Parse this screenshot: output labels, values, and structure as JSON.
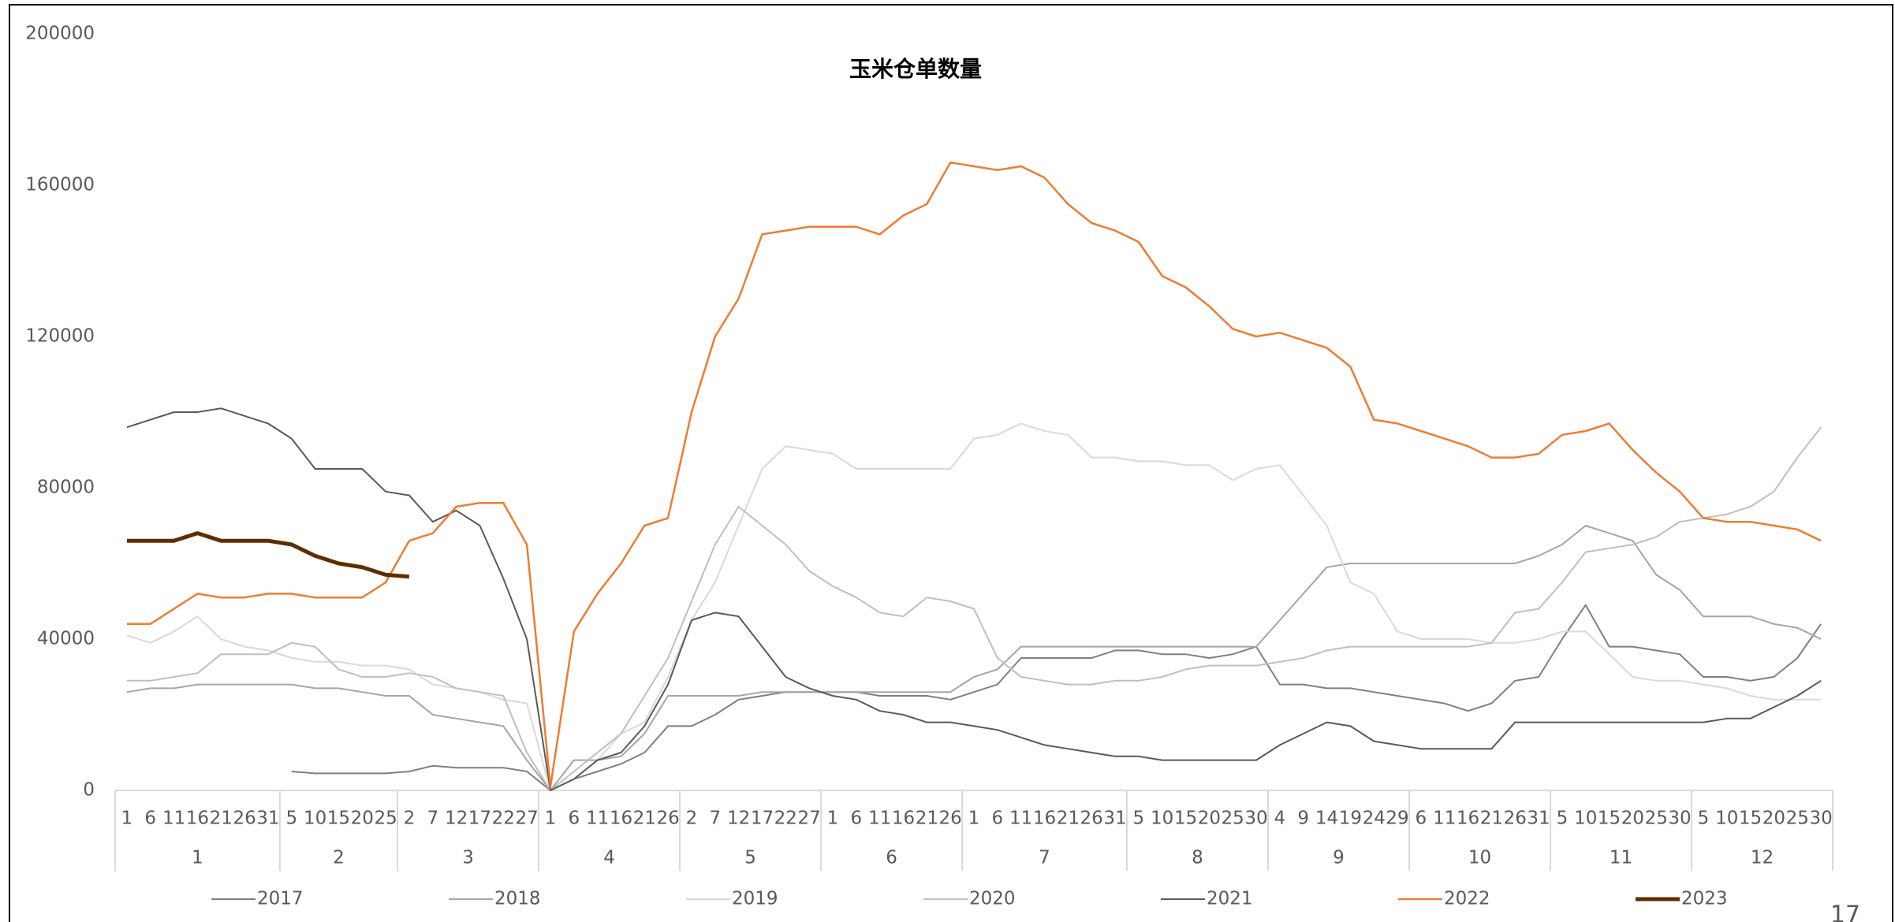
{
  "chart_data": {
    "type": "line",
    "title": "玉米仓单数量",
    "page_number": "17",
    "groups": [
      {
        "label": "1",
        "days": [
          "1",
          "6",
          "11",
          "16",
          "21",
          "26",
          "31"
        ]
      },
      {
        "label": "2",
        "days": [
          "5",
          "10",
          "15",
          "20",
          "25"
        ]
      },
      {
        "label": "3",
        "days": [
          "2",
          "7",
          "12",
          "17",
          "22",
          "27"
        ]
      },
      {
        "label": "4",
        "days": [
          "1",
          "6",
          "11",
          "16",
          "21",
          "26"
        ]
      },
      {
        "label": "5",
        "days": [
          "2",
          "7",
          "12",
          "17",
          "22",
          "27"
        ]
      },
      {
        "label": "6",
        "days": [
          "1",
          "6",
          "11",
          "16",
          "21",
          "26"
        ]
      },
      {
        "label": "7",
        "days": [
          "1",
          "6",
          "11",
          "16",
          "21",
          "26",
          "31"
        ]
      },
      {
        "label": "8",
        "days": [
          "5",
          "10",
          "15",
          "20",
          "25",
          "30"
        ]
      },
      {
        "label": "9",
        "days": [
          "4",
          "9",
          "14",
          "19",
          "24",
          "29"
        ]
      },
      {
        "label": "10",
        "days": [
          "6",
          "11",
          "16",
          "21",
          "26",
          "31"
        ]
      },
      {
        "label": "11",
        "days": [
          "5",
          "10",
          "15",
          "20",
          "25",
          "30"
        ]
      },
      {
        "label": "12",
        "days": [
          "5",
          "10",
          "15",
          "20",
          "25",
          "30"
        ]
      }
    ],
    "ylim": [
      0,
      200000
    ],
    "yticks": [
      0,
      40000,
      80000,
      120000,
      160000,
      200000
    ],
    "grid": false,
    "series": [
      {
        "name": "2017",
        "color": "#7f7f7f",
        "width": 2,
        "values": [
          null,
          null,
          null,
          null,
          null,
          null,
          null,
          5000,
          4500,
          4500,
          4500,
          4500,
          5000,
          6500,
          6000,
          6000,
          6000,
          5000,
          0,
          3000,
          5000,
          7000,
          10000,
          17000,
          17000,
          20000,
          24000,
          25000,
          26000,
          26000,
          26000,
          26000,
          25000,
          25000,
          25000,
          24000,
          26000,
          28000,
          35000,
          35000,
          35000,
          35000,
          37000,
          37000,
          36000,
          36000,
          35000,
          36000,
          38000,
          28000,
          28000,
          27000,
          27000,
          26000,
          25000,
          24000,
          23000,
          21000,
          23000,
          29000,
          30000,
          40000,
          49000,
          38000,
          38000,
          37000,
          36000,
          30000,
          30000,
          29000,
          30000,
          35000,
          44000
        ]
      },
      {
        "name": "2018",
        "color": "#a5a5a5",
        "width": 2,
        "values": [
          26000,
          27000,
          27000,
          28000,
          28000,
          28000,
          28000,
          28000,
          27000,
          27000,
          26000,
          25000,
          25000,
          20000,
          19000,
          18000,
          17000,
          8000,
          0,
          8000,
          8000,
          9000,
          15000,
          25000,
          25000,
          25000,
          25000,
          26000,
          26000,
          26000,
          26000,
          26000,
          26000,
          26000,
          26000,
          26000,
          30000,
          32000,
          38000,
          38000,
          38000,
          38000,
          38000,
          38000,
          38000,
          38000,
          38000,
          38000,
          38000,
          45000,
          52000,
          59000,
          60000,
          60000,
          60000,
          60000,
          60000,
          60000,
          60000,
          60000,
          62000,
          65000,
          70000,
          68000,
          66000,
          57000,
          53000,
          46000,
          46000,
          46000,
          44000,
          43000,
          40000
        ]
      },
      {
        "name": "2019",
        "color": "#d9d9d9",
        "width": 2,
        "values": [
          41000,
          39000,
          42000,
          46000,
          40000,
          38000,
          37000,
          35000,
          34000,
          34000,
          33000,
          33000,
          32000,
          28000,
          27000,
          26000,
          24000,
          23000,
          0,
          3000,
          8000,
          15000,
          18000,
          30000,
          45000,
          55000,
          70000,
          85000,
          91000,
          90000,
          89000,
          85000,
          85000,
          85000,
          85000,
          85000,
          93000,
          94000,
          97000,
          95000,
          94000,
          88000,
          88000,
          87000,
          87000,
          86000,
          86000,
          82000,
          85000,
          86000,
          78000,
          70000,
          55000,
          52000,
          42000,
          40000,
          40000,
          40000,
          39000,
          39000,
          40000,
          42000,
          42000,
          36000,
          30000,
          29000,
          29000,
          28000,
          27000,
          25000,
          24000,
          24000,
          24000
        ]
      },
      {
        "name": "2020",
        "color": "#bfbfbf",
        "width": 2,
        "values": [
          29000,
          29000,
          30000,
          31000,
          36000,
          36000,
          36000,
          39000,
          38000,
          32000,
          30000,
          30000,
          31000,
          30000,
          27000,
          26000,
          25000,
          10000,
          0,
          5000,
          10000,
          15000,
          25000,
          35000,
          50000,
          65000,
          75000,
          70000,
          65000,
          58000,
          54000,
          51000,
          47000,
          46000,
          51000,
          50000,
          48000,
          35000,
          30000,
          29000,
          28000,
          28000,
          29000,
          29000,
          30000,
          32000,
          33000,
          33000,
          33000,
          34000,
          35000,
          37000,
          38000,
          38000,
          38000,
          38000,
          38000,
          38000,
          39000,
          47000,
          48000,
          55000,
          63000,
          64000,
          65000,
          67000,
          71000,
          72000,
          73000,
          75000,
          79000,
          88000,
          96000
        ]
      },
      {
        "name": "2021",
        "color": "#595959",
        "width": 2,
        "values": [
          96000,
          98000,
          100000,
          100000,
          101000,
          99000,
          97000,
          93000,
          85000,
          85000,
          85000,
          79000,
          78000,
          71000,
          74000,
          70000,
          56000,
          40000,
          0,
          3000,
          8000,
          10000,
          17000,
          28000,
          45000,
          47000,
          46000,
          38000,
          30000,
          27000,
          25000,
          24000,
          21000,
          20000,
          18000,
          18000,
          17000,
          16000,
          14000,
          12000,
          11000,
          10000,
          9000,
          9000,
          8000,
          8000,
          8000,
          8000,
          8000,
          12000,
          15000,
          18000,
          17000,
          13000,
          12000,
          11000,
          11000,
          11000,
          11000,
          18000,
          18000,
          18000,
          18000,
          18000,
          18000,
          18000,
          18000,
          18000,
          19000,
          19000,
          22000,
          25000,
          29000
        ]
      },
      {
        "name": "2022",
        "color": "#ed7d31",
        "width": 2.5,
        "values": [
          44000,
          44000,
          48000,
          52000,
          51000,
          51000,
          52000,
          52000,
          51000,
          51000,
          51000,
          55000,
          66000,
          68000,
          75000,
          76000,
          76000,
          65000,
          1000,
          42000,
          52000,
          60000,
          70000,
          72000,
          100000,
          120000,
          130000,
          147000,
          148000,
          149000,
          149000,
          149000,
          147000,
          152000,
          155000,
          166000,
          165000,
          164000,
          165000,
          162000,
          155000,
          150000,
          148000,
          145000,
          136000,
          133000,
          128000,
          122000,
          120000,
          121000,
          119000,
          117000,
          112000,
          98000,
          97000,
          95000,
          93000,
          91000,
          88000,
          88000,
          89000,
          94000,
          95000,
          97000,
          90000,
          84000,
          79000,
          72000,
          71000,
          71000,
          70000,
          69000,
          66000
        ]
      },
      {
        "name": "2023",
        "color": "#5c2e00",
        "width": 5,
        "values": [
          66000,
          66000,
          66000,
          68000,
          66000,
          66000,
          66000,
          65000,
          62000,
          60000,
          59000,
          57000,
          56500,
          null,
          null,
          null,
          null,
          null,
          null,
          null,
          null,
          null,
          null,
          null,
          null,
          null,
          null,
          null,
          null,
          null,
          null,
          null,
          null,
          null,
          null,
          null,
          null,
          null,
          null,
          null,
          null,
          null,
          null,
          null,
          null,
          null,
          null,
          null,
          null,
          null,
          null,
          null,
          null,
          null,
          null,
          null,
          null,
          null,
          null,
          null,
          null,
          null,
          null,
          null,
          null,
          null,
          null,
          null,
          null,
          null,
          null,
          null,
          null
        ]
      }
    ]
  }
}
